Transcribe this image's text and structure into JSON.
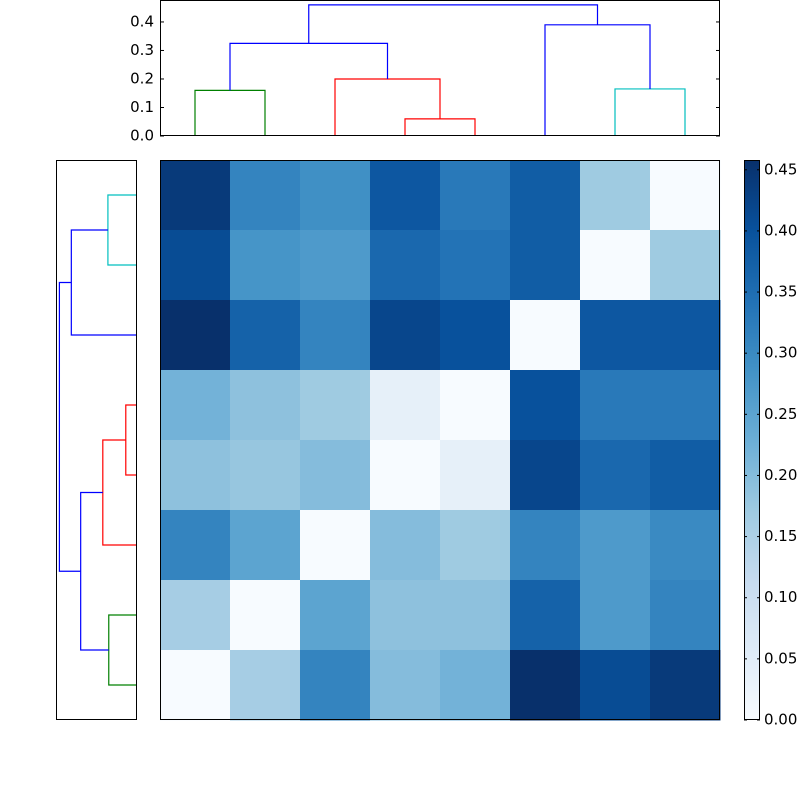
{
  "chart_data": [
    {
      "type": "dendrogram",
      "orientation": "top",
      "xlim": [
        0,
        80
      ],
      "ylim": [
        0,
        0.477
      ],
      "yticks": [
        {
          "value": 0,
          "label": "0.0"
        },
        {
          "value": 0.1,
          "label": "0.1"
        },
        {
          "value": 0.2,
          "label": "0.2"
        },
        {
          "value": 0.3,
          "label": "0.3"
        },
        {
          "value": 0.4,
          "label": "0.4"
        }
      ],
      "links": [
        {
          "color": "#008000",
          "x": [
            5,
            5,
            15,
            15
          ],
          "y": [
            0,
            0.16,
            0.16,
            0
          ]
        },
        {
          "color": "#ff0000",
          "x": [
            35,
            35,
            45,
            45
          ],
          "y": [
            0,
            0.06,
            0.06,
            0
          ]
        },
        {
          "color": "#ff0000",
          "x": [
            25,
            25,
            40,
            40
          ],
          "y": [
            0,
            0.2,
            0.2,
            0.06
          ]
        },
        {
          "color": "#0000ff",
          "x": [
            10,
            10,
            32.5,
            32.5
          ],
          "y": [
            0.16,
            0.325,
            0.325,
            0.2
          ]
        },
        {
          "color": "#00bfbf",
          "x": [
            65,
            65,
            75,
            75
          ],
          "y": [
            0,
            0.165,
            0.165,
            0
          ]
        },
        {
          "color": "#0000ff",
          "x": [
            55,
            55,
            70,
            70
          ],
          "y": [
            0,
            0.39,
            0.39,
            0.165
          ]
        },
        {
          "color": "#0000ff",
          "x": [
            21.25,
            21.25,
            62.5,
            62.5
          ],
          "y": [
            0.325,
            0.46,
            0.46,
            0.39
          ]
        }
      ]
    },
    {
      "type": "dendrogram",
      "orientation": "left",
      "xlim": [
        0,
        0.47
      ],
      "ylim": [
        0,
        80
      ],
      "links": [
        {
          "color": "#00bfbf",
          "x": [
            0,
            0.165,
            0.165,
            0
          ],
          "y": [
            5,
            5,
            15,
            15
          ]
        },
        {
          "color": "#0000ff",
          "x": [
            0.165,
            0.38,
            0.38,
            0
          ],
          "y": [
            10,
            10,
            25,
            25
          ]
        },
        {
          "color": "#ff0000",
          "x": [
            0,
            0.06,
            0.06,
            0
          ],
          "y": [
            35,
            35,
            45,
            45
          ]
        },
        {
          "color": "#ff0000",
          "x": [
            0.06,
            0.195,
            0.195,
            0
          ],
          "y": [
            40,
            40,
            55,
            55
          ]
        },
        {
          "color": "#008000",
          "x": [
            0,
            0.16,
            0.16,
            0
          ],
          "y": [
            65,
            65,
            75,
            75
          ]
        },
        {
          "color": "#0000ff",
          "x": [
            0.195,
            0.325,
            0.325,
            0.16
          ],
          "y": [
            47.5,
            47.5,
            70,
            70
          ]
        },
        {
          "color": "#0000ff",
          "x": [
            0.38,
            0.45,
            0.45,
            0.325
          ],
          "y": [
            17.5,
            17.5,
            58.75,
            58.75
          ]
        }
      ]
    },
    {
      "type": "heatmap",
      "values": [
        [
          0.44,
          0.31,
          0.29,
          0.39,
          0.33,
          0.38,
          0.17,
          0.0
        ],
        [
          0.41,
          0.28,
          0.27,
          0.36,
          0.34,
          0.38,
          0.0,
          0.17
        ],
        [
          0.46,
          0.37,
          0.31,
          0.42,
          0.4,
          0.0,
          0.39,
          0.39
        ],
        [
          0.22,
          0.19,
          0.17,
          0.04,
          0.0,
          0.4,
          0.33,
          0.33
        ],
        [
          0.19,
          0.18,
          0.2,
          0.0,
          0.04,
          0.42,
          0.36,
          0.38
        ],
        [
          0.31,
          0.25,
          0.0,
          0.2,
          0.17,
          0.31,
          0.27,
          0.3
        ],
        [
          0.16,
          0.0,
          0.25,
          0.19,
          0.19,
          0.37,
          0.27,
          0.31
        ],
        [
          0.0,
          0.16,
          0.31,
          0.2,
          0.22,
          0.46,
          0.41,
          0.44
        ]
      ],
      "colormap": [
        "#f7fbff",
        "#deebf7",
        "#c6dbef",
        "#9ecae1",
        "#6baed6",
        "#4292c6",
        "#2171b5",
        "#08519c",
        "#08306b"
      ],
      "clim": [
        0,
        0.458
      ],
      "colorbar_ticks": [
        {
          "value": 0,
          "label": "0.00"
        },
        {
          "value": 0.05,
          "label": "0.05"
        },
        {
          "value": 0.1,
          "label": "0.10"
        },
        {
          "value": 0.15,
          "label": "0.15"
        },
        {
          "value": 0.2,
          "label": "0.20"
        },
        {
          "value": 0.25,
          "label": "0.25"
        },
        {
          "value": 0.3,
          "label": "0.30"
        },
        {
          "value": 0.35,
          "label": "0.35"
        },
        {
          "value": 0.4,
          "label": "0.40"
        },
        {
          "value": 0.45,
          "label": "0.45"
        }
      ]
    }
  ]
}
